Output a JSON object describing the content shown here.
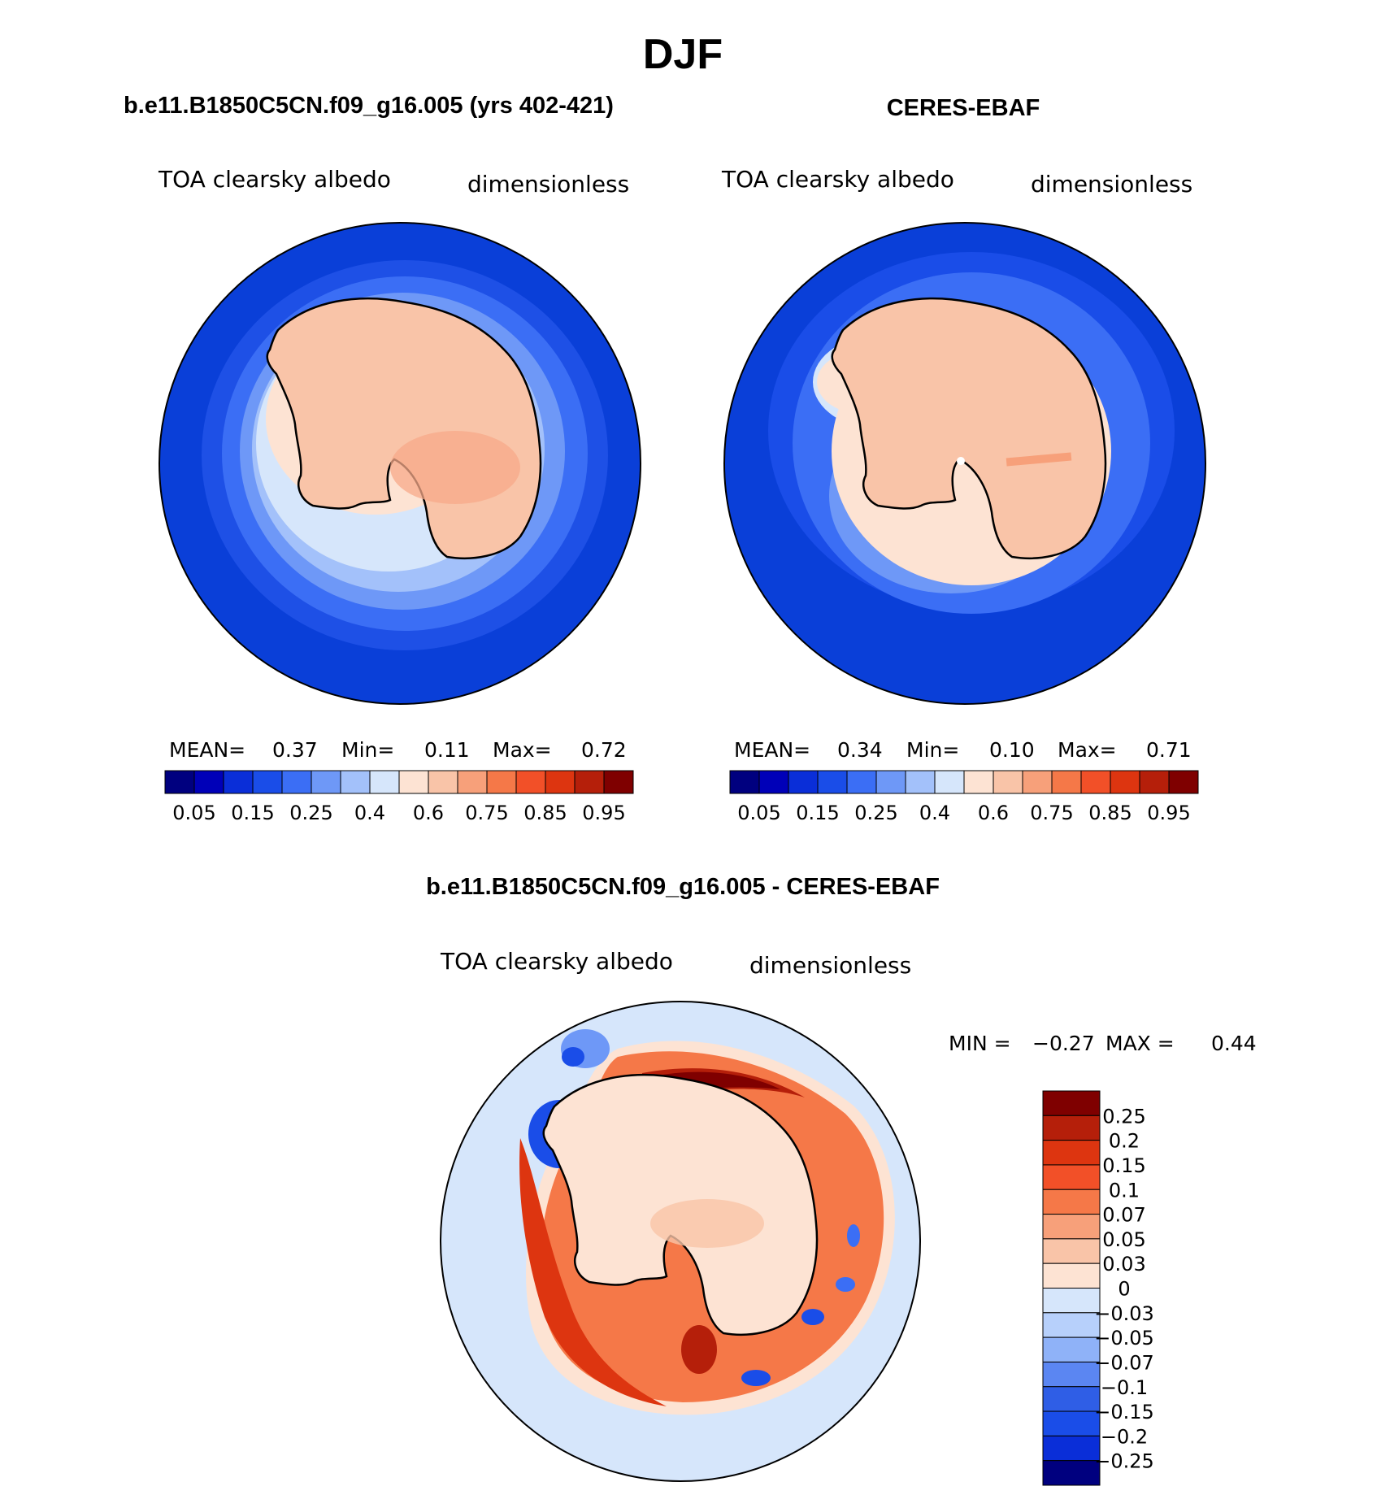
{
  "figure": {
    "title": "DJF",
    "colors": {
      "ocean_dark": "#0a3fd8",
      "land": "#f9c4a8",
      "coast": "#000000"
    }
  },
  "chart_data": [
    {
      "type": "heatmap",
      "projection": "south-polar-stereographic",
      "title": "b.e11.B1850C5CN.f09_g16.005 (yrs 402-421)",
      "variable": "TOA clearsky albedo",
      "units": "dimensionless",
      "stats": {
        "mean_label": "MEAN=",
        "mean": "0.37",
        "min_label": "Min=",
        "min": "0.11",
        "max_label": "Max=",
        "max": "0.72"
      },
      "colorbar": {
        "orientation": "horizontal",
        "colors": [
          "#00007f",
          "#0000b8",
          "#0a2ed8",
          "#1a4de8",
          "#3b6ef5",
          "#6e98f7",
          "#a3c1fa",
          "#d6e6fb",
          "#fde3d3",
          "#f9c4a8",
          "#f7a07a",
          "#f57848",
          "#f25028",
          "#dd3510",
          "#b51f0a",
          "#7f0000"
        ],
        "labels": [
          "0.05",
          "0.15",
          "0.25",
          "0.4",
          "0.6",
          "0.75",
          "0.85",
          "0.95"
        ]
      }
    },
    {
      "type": "heatmap",
      "projection": "south-polar-stereographic",
      "title": "CERES-EBAF",
      "variable": "TOA clearsky albedo",
      "units": "dimensionless",
      "stats": {
        "mean_label": "MEAN=",
        "mean": "0.34",
        "min_label": "Min=",
        "min": "0.10",
        "max_label": "Max=",
        "max": "0.71"
      },
      "colorbar": {
        "orientation": "horizontal",
        "colors": [
          "#00007f",
          "#0000b8",
          "#0a2ed8",
          "#1a4de8",
          "#3b6ef5",
          "#6e98f7",
          "#a3c1fa",
          "#d6e6fb",
          "#fde3d3",
          "#f9c4a8",
          "#f7a07a",
          "#f57848",
          "#f25028",
          "#dd3510",
          "#b51f0a",
          "#7f0000"
        ],
        "labels": [
          "0.05",
          "0.15",
          "0.25",
          "0.4",
          "0.6",
          "0.75",
          "0.85",
          "0.95"
        ]
      }
    },
    {
      "type": "heatmap",
      "projection": "south-polar-stereographic",
      "title": "b.e11.B1850C5CN.f09_g16.005 - CERES-EBAF",
      "variable": "TOA clearsky albedo",
      "units": "dimensionless",
      "stats": {
        "min_label": "MIN =",
        "min": "−0.27",
        "max_label": "MAX =",
        "max": "0.44"
      },
      "colorbar": {
        "orientation": "vertical",
        "colors_top_to_bottom": [
          "#7f0000",
          "#b51f0a",
          "#dd3510",
          "#f25028",
          "#f57848",
          "#f7a07a",
          "#f9c4a8",
          "#fde3d3",
          "#d6e6fb",
          "#b7d0fb",
          "#8fb2f8",
          "#5b86f2",
          "#2f5ee6",
          "#1a4de8",
          "#0a2ed8",
          "#00007f"
        ],
        "labels": [
          "0.25",
          "0.2",
          "0.15",
          "0.1",
          "0.07",
          "0.05",
          "0.03",
          "0",
          "−0.03",
          "−0.05",
          "−0.07",
          "−0.1",
          "−0.15",
          "−0.2",
          "−0.25"
        ]
      }
    }
  ]
}
